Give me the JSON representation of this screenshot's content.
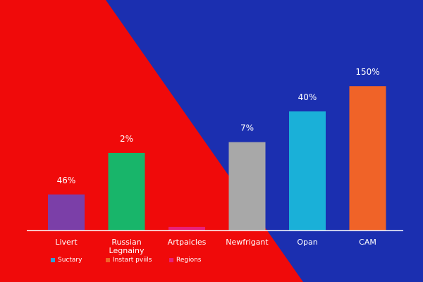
{
  "chart_data": {
    "type": "bar",
    "title": "",
    "xlabel": "",
    "ylabel": "",
    "grid": false,
    "categories": [
      "Livert",
      "Russian\nLegnainy",
      "Artpaicles",
      "Newfrigant",
      "Opan",
      "CAM"
    ],
    "value_labels": [
      "46%",
      "2%",
      "",
      "7%",
      "40%",
      "150%"
    ],
    "values": [
      20,
      43,
      2,
      49,
      66,
      80
    ],
    "ylim": [
      0,
      100
    ],
    "bar_colors": [
      "#7b3fa8",
      "#18b56a",
      "#e8207a",
      "#a8a8a8",
      "#1ab0d8",
      "#f06328"
    ],
    "legend_position": "bottom-left",
    "legend": [
      {
        "label": "Suctary",
        "color": "#2f9fd8"
      },
      {
        "label": "Instart pviils",
        "color": "#f06328"
      },
      {
        "label": "Regions",
        "color": "#e8207a"
      }
    ]
  },
  "colors": {
    "background_red": "#f00a0a",
    "background_blue": "#1b2fb0",
    "axis_line": "#ffffff"
  }
}
